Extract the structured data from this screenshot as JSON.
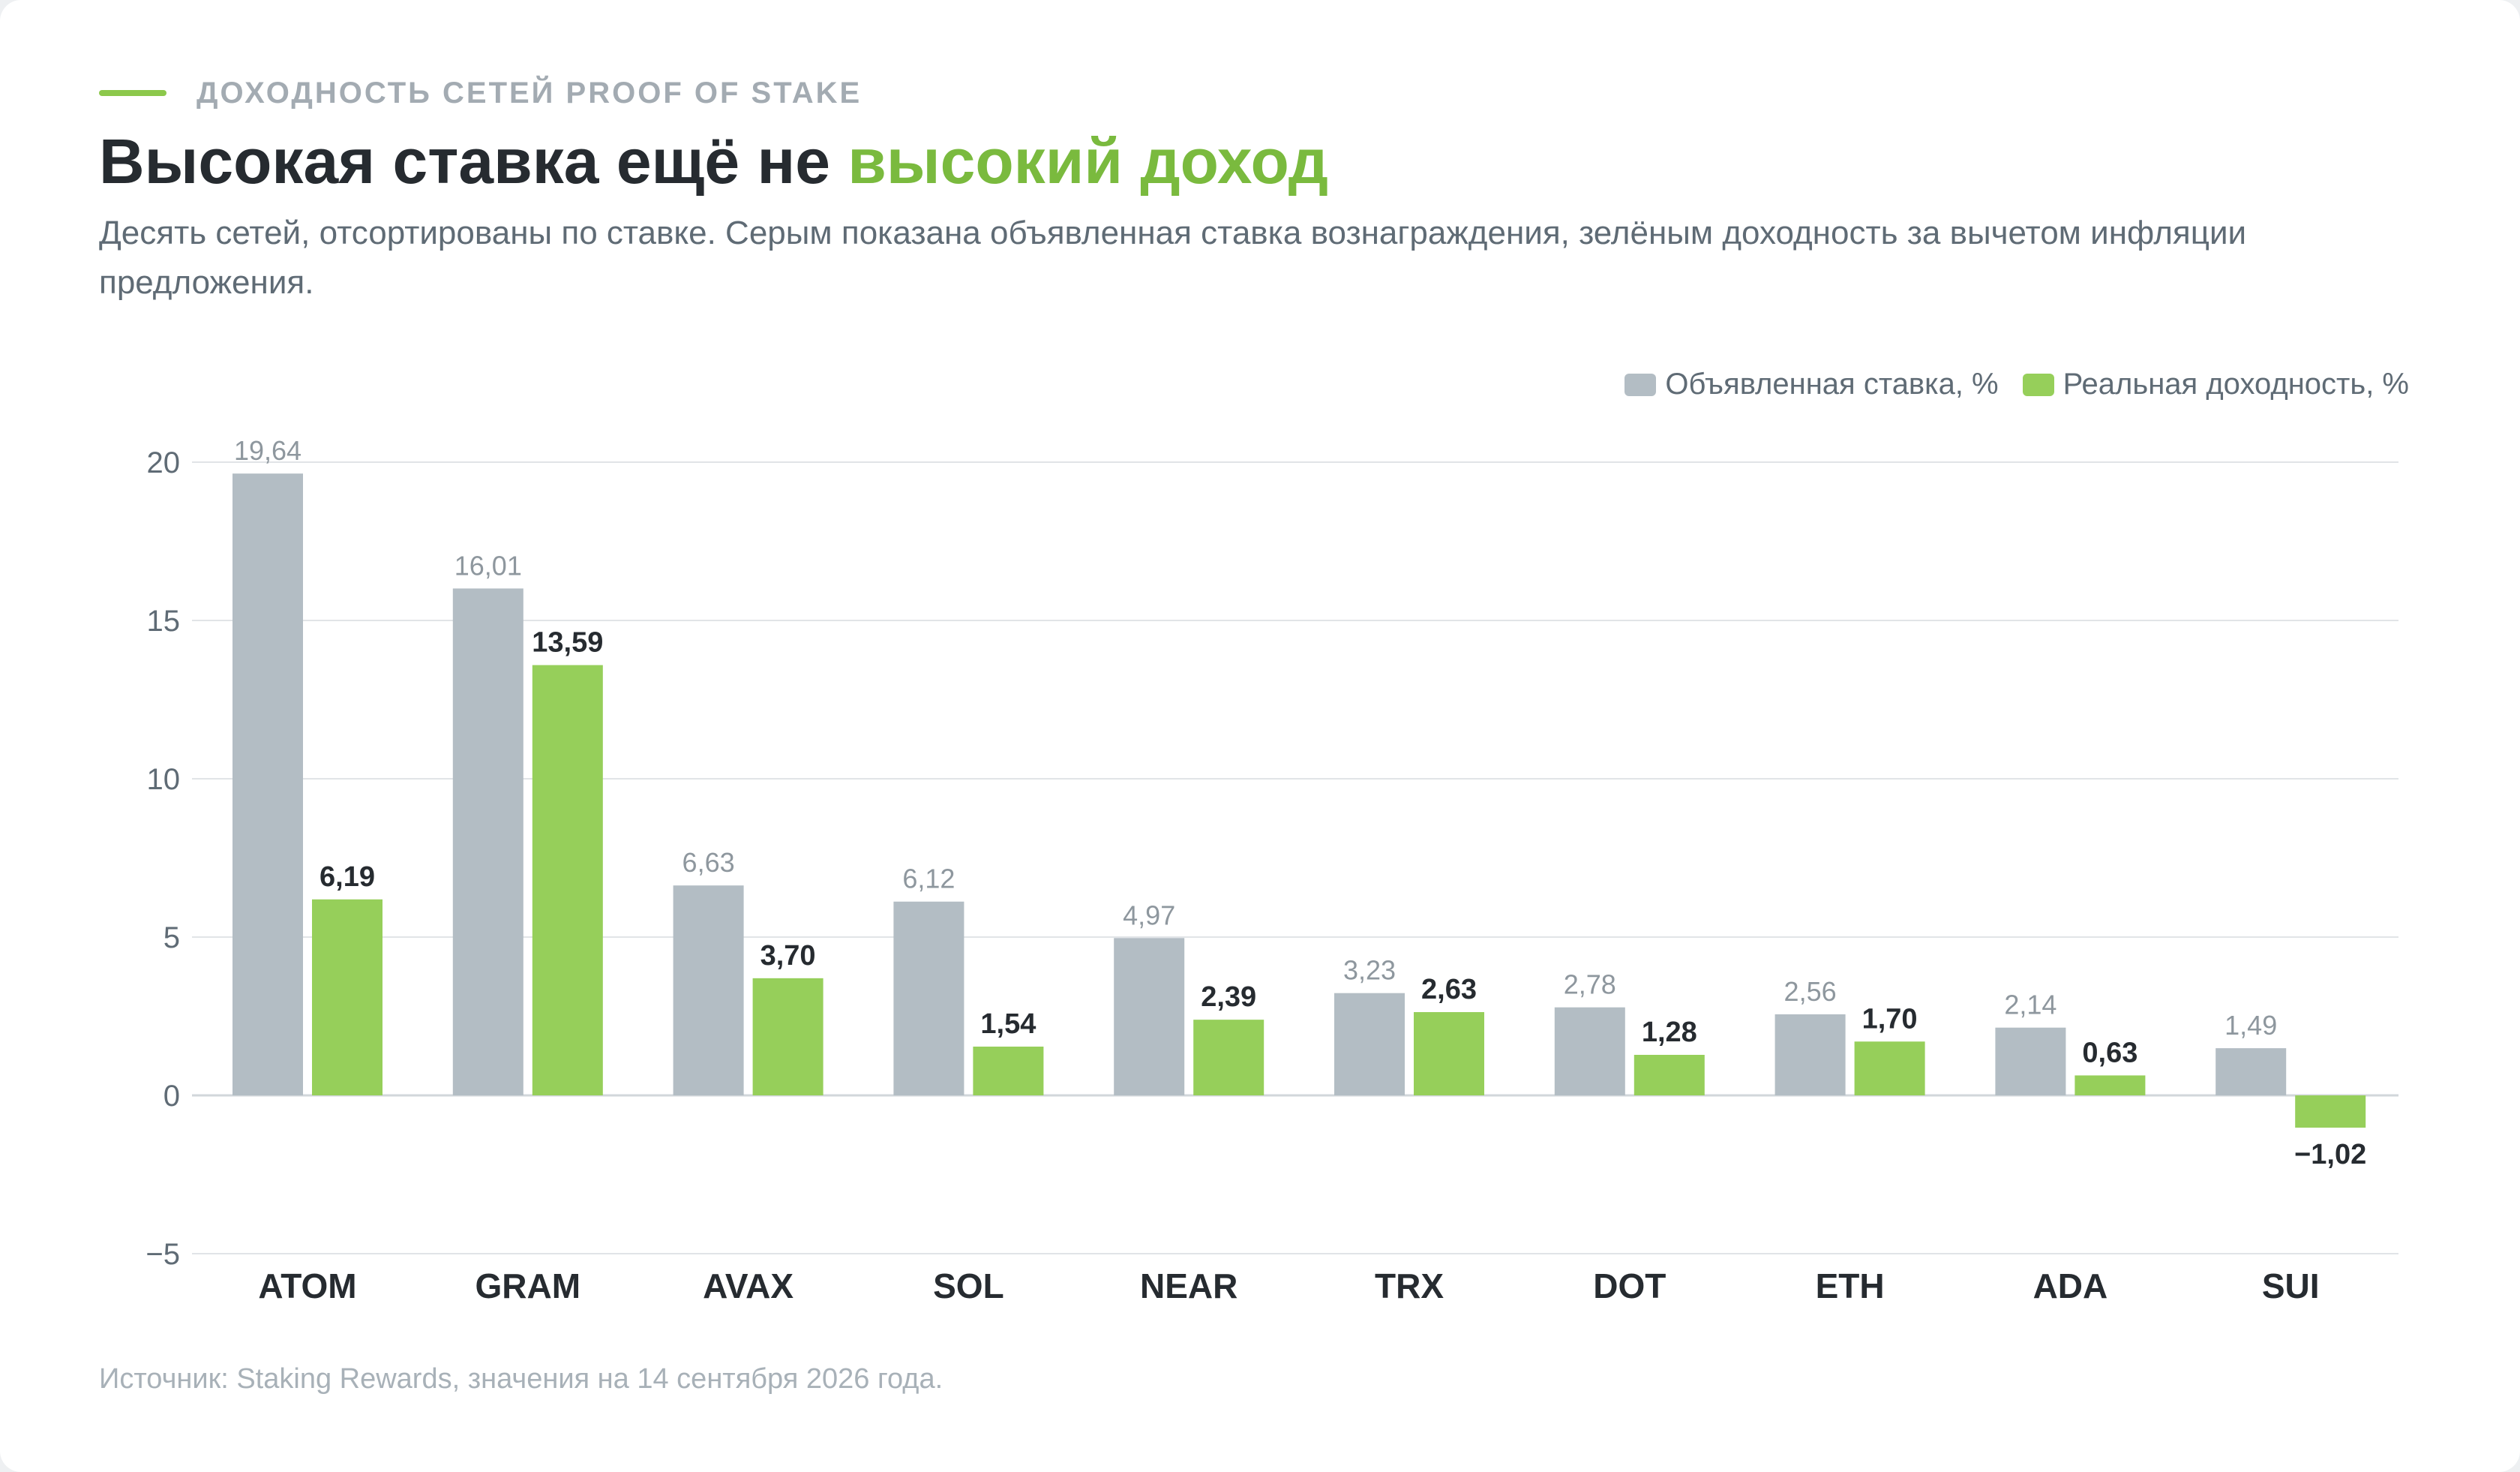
{
  "header": {
    "eyebrow": "ДОХОДНОСТЬ СЕТЕЙ PROOF OF STAKE",
    "title_main": "Высокая ставка ещё не ",
    "title_accent": "высокий доход",
    "subtitle": "Десять сетей, отсортированы по ставке. Серым показана объявленная ставка вознаграждения, зелёным доходность за вычетом инфляции предложения."
  },
  "legend": {
    "items": [
      {
        "label": "Объявленная ставка, %",
        "color": "#b3bdc4"
      },
      {
        "label": "Реальная доходность, %",
        "color": "#96cf5a"
      }
    ]
  },
  "footer": {
    "source": "Источник: Staking Rewards, значения на 14 сентября 2026 года."
  },
  "chart_data": {
    "type": "bar",
    "categories": [
      "ATOM",
      "GRAM",
      "AVAX",
      "SOL",
      "NEAR",
      "TRX",
      "DOT",
      "ETH",
      "ADA",
      "SUI"
    ],
    "series": [
      {
        "name": "Объявленная ставка, %",
        "color": "#b3bdc4",
        "values": [
          19.64,
          16.01,
          6.63,
          6.12,
          4.97,
          3.23,
          2.78,
          2.56,
          2.14,
          1.49
        ],
        "labels": [
          "19,64",
          "16,01",
          "6,63",
          "6,12",
          "4,97",
          "3,23",
          "2,78",
          "2,56",
          "2,14",
          "1,49"
        ]
      },
      {
        "name": "Реальная доходность, %",
        "color": "#96cf5a",
        "values": [
          6.19,
          13.59,
          3.7,
          1.54,
          2.39,
          2.63,
          1.28,
          1.7,
          0.63,
          -1.02
        ],
        "labels": [
          "6,19",
          "13,59",
          "3,70",
          "1,54",
          "2,39",
          "2,63",
          "1,28",
          "1,70",
          "0,63",
          "−1,02"
        ]
      }
    ],
    "ylim": [
      -5,
      20
    ],
    "yticks": [
      -5,
      0,
      5,
      10,
      15,
      20
    ],
    "ytick_labels": [
      "−5",
      "0",
      "5",
      "10",
      "15",
      "20"
    ],
    "grid": true,
    "legend_position": "top-right"
  }
}
